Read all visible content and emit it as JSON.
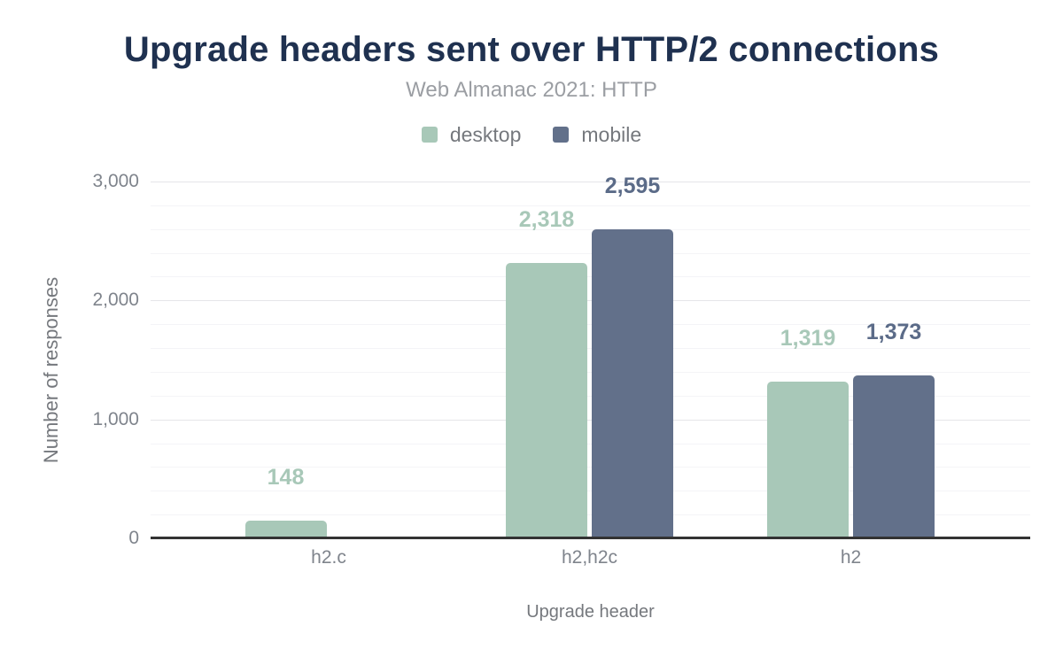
{
  "title": "Upgrade headers sent over HTTP/2 connections",
  "subtitle": "Web Almanac 2021: HTTP",
  "colors": {
    "title": "#1f3150",
    "subtitle": "#9b9ea3",
    "axis_text": "#7f848c",
    "desktop": "#a8c8b8",
    "mobile": "#62708a"
  },
  "chart_data": {
    "type": "bar",
    "title": "Upgrade headers sent over HTTP/2 connections",
    "subtitle": "Web Almanac 2021: HTTP",
    "categories": [
      "h2.c",
      "h2,h2c",
      "h2"
    ],
    "series": [
      {
        "name": "desktop",
        "color": "#a8c8b8",
        "label_color": "#a8c8b8",
        "values": [
          148,
          2318,
          1319
        ],
        "labels": [
          "148",
          "2,318",
          "1,319"
        ]
      },
      {
        "name": "mobile",
        "color": "#62708a",
        "label_color": "#5b6b88",
        "values": [
          null,
          2595,
          1373
        ],
        "labels": [
          "",
          "2,595",
          "1,373"
        ]
      }
    ],
    "xlabel": "Upgrade header",
    "ylabel": "Number of responses",
    "ylim": [
      0,
      3000
    ],
    "yticks": [
      0,
      1000,
      2000,
      3000
    ],
    "ytick_labels": [
      "0",
      "1,000",
      "2,000",
      "3,000"
    ],
    "minor_grid_step": 200,
    "grid": true,
    "legend_position": "top",
    "legend_entries": [
      "desktop",
      "mobile"
    ]
  }
}
